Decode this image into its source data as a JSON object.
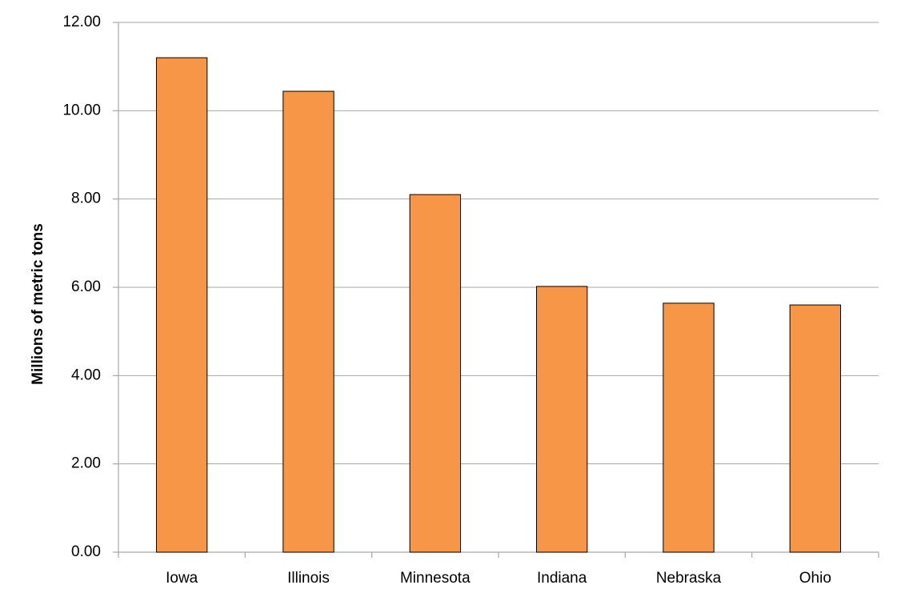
{
  "chart_data": {
    "type": "bar",
    "y_label": "Millions of metric tons",
    "categories": [
      "Iowa",
      "Illinois",
      "Minnesota",
      "Indiana",
      "Nebraska",
      "Ohio"
    ],
    "values": [
      11.2,
      10.44,
      8.1,
      6.02,
      5.64,
      5.6
    ],
    "color": "#f79646",
    "ylim": [
      0,
      12
    ],
    "yticks": [
      {
        "value": 0,
        "label": "0.00"
      },
      {
        "value": 2,
        "label": "2.00"
      },
      {
        "value": 4,
        "label": "4.00"
      },
      {
        "value": 6,
        "label": "6.00"
      },
      {
        "value": 8,
        "label": "8.00"
      },
      {
        "value": 10,
        "label": "10.00"
      },
      {
        "value": 12,
        "label": "12.00"
      }
    ],
    "grid": true
  }
}
